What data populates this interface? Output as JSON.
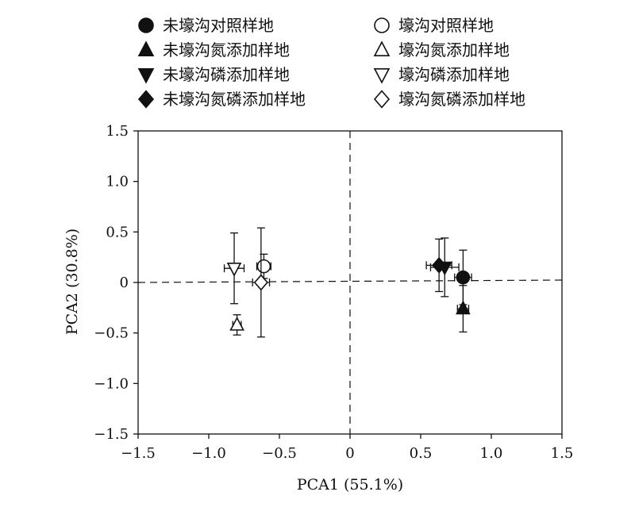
{
  "chart_data": {
    "type": "scatter",
    "xlabel": "PCA1 (55.1%)",
    "ylabel": "PCA2 (30.8%)",
    "xlim": [
      -1.5,
      1.5
    ],
    "ylim": [
      -1.5,
      1.5
    ],
    "xticks": [
      -1.5,
      -1.0,
      -0.5,
      0,
      0.5,
      1.0,
      1.5
    ],
    "yticks": [
      -1.5,
      -1.0,
      -0.5,
      0,
      0.5,
      1.0,
      1.5
    ],
    "xtick_labels": [
      "−1.5",
      "−1.0",
      "−0.5",
      "0",
      "0.5",
      "1.0",
      "1.5"
    ],
    "ytick_labels": [
      "−1.5",
      "−1.0",
      "−0.5",
      "0",
      "0.5",
      "1.0",
      "1.5"
    ],
    "grid": false,
    "reference_lines": "dashed lines at x = 0 and y = 0",
    "legend_position": "top",
    "series": [
      {
        "name": "未壕沟对照样地",
        "marker": "circle",
        "filled": true,
        "x": 0.8,
        "y": 0.05,
        "xerr": 0.06,
        "yerr": 0.27
      },
      {
        "name": "壕沟对照样地",
        "marker": "circle",
        "filled": false,
        "x": -0.61,
        "y": 0.16,
        "xerr": 0.05,
        "yerr": 0.12
      },
      {
        "name": "未壕沟氮添加样地",
        "marker": "triangle-up",
        "filled": true,
        "x": 0.8,
        "y": -0.26,
        "xerr": 0.04,
        "yerr": 0.23
      },
      {
        "name": "壕沟氮添加样地",
        "marker": "triangle-up",
        "filled": false,
        "x": -0.8,
        "y": -0.42,
        "xerr": 0.03,
        "yerr": 0.1
      },
      {
        "name": "未壕沟磷添加样地",
        "marker": "triangle-down",
        "filled": true,
        "x": 0.67,
        "y": 0.15,
        "xerr": 0.1,
        "yerr": 0.29
      },
      {
        "name": "壕沟磷添加样地",
        "marker": "triangle-down",
        "filled": false,
        "x": -0.82,
        "y": 0.14,
        "xerr": 0.07,
        "yerr": 0.35
      },
      {
        "name": "未壕沟氮磷添加样地",
        "marker": "diamond",
        "filled": true,
        "x": 0.63,
        "y": 0.17,
        "xerr": 0.09,
        "yerr": 0.26
      },
      {
        "name": "壕沟氮磷添加样地",
        "marker": "diamond",
        "filled": false,
        "x": -0.63,
        "y": 0.0,
        "xerr": 0.06,
        "yerr": 0.54
      }
    ],
    "colors": {
      "ink": "#111111"
    }
  }
}
